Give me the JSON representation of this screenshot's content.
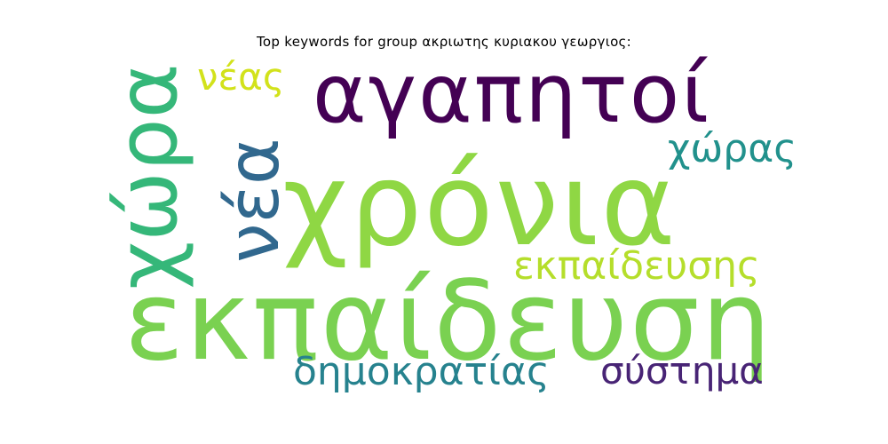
{
  "title": "Top keywords for group ακριωτης κυριακου γεωργιος:",
  "words": [
    {
      "text": "εκπαίδευση",
      "color": "#7ad151"
    },
    {
      "text": "χρόνια",
      "color": "#8fd744"
    },
    {
      "text": "αγαπητοί",
      "color": "#440154"
    },
    {
      "text": "χώρα",
      "color": "#35b779"
    },
    {
      "text": "νέα",
      "color": "#31688e"
    },
    {
      "text": "νέας",
      "color": "#d2e21b"
    },
    {
      "text": "χώρας",
      "color": "#21918c"
    },
    {
      "text": "εκπαίδευσης",
      "color": "#b5de2b"
    },
    {
      "text": "δημοκρατίας",
      "color": "#26828e"
    },
    {
      "text": "σύστημα",
      "color": "#482475"
    }
  ]
}
